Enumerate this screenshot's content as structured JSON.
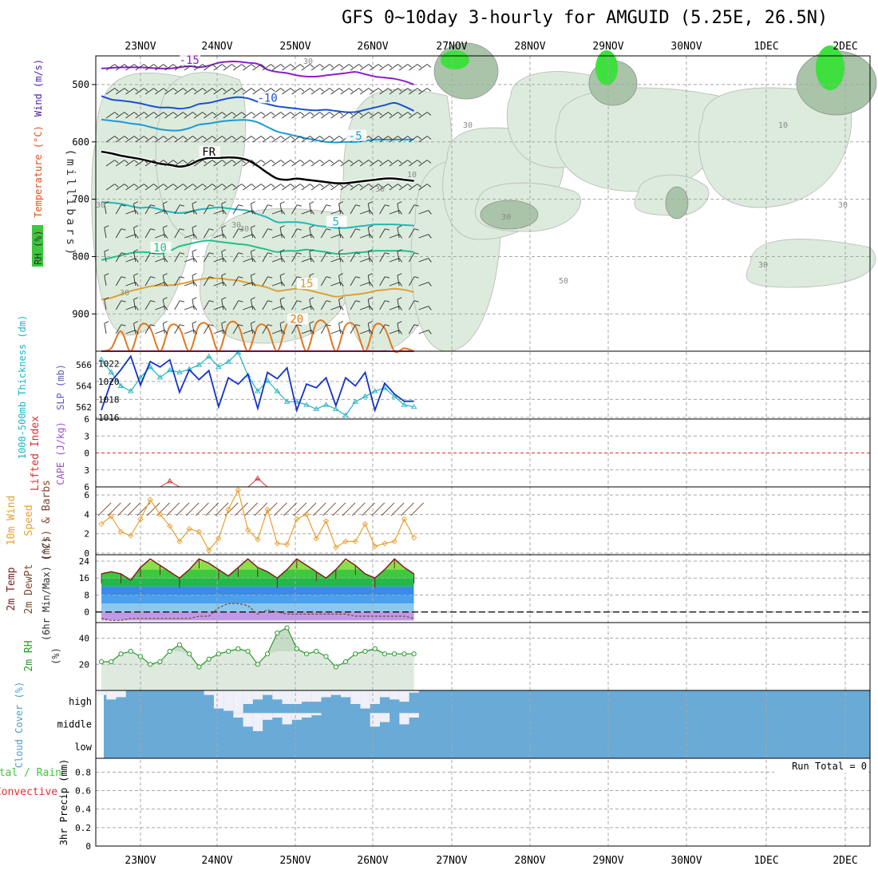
{
  "title": "GFS 0~10day 3-hourly for AMGUID (5.25E, 26.5N)",
  "colors": {
    "axis": "#000000",
    "grid": "#a8a8a8",
    "rh_light": "#dcebdc",
    "rh_mid": "#9fd49f",
    "rh_dark": "#3ec63e",
    "temp_m15": "#8a1fc8",
    "temp_m10": "#1a4fd6",
    "temp_m5": "#1a9ad6",
    "temp_fr": "#000000",
    "temp_5": "#20b8b8",
    "temp_10": "#20c08a",
    "temp_15": "#e0a030",
    "temp_20": "#e07820",
    "temp_25": "#d81c8c",
    "slp": "#1433c8",
    "thickness": "#20b4c4",
    "cape": "#d83030",
    "wind10": "#e8a030",
    "temp2m": "#7a2020",
    "dew2m": "#7a4a30",
    "rh2m_line": "#2a9a2a",
    "rh2m_fill": "#c6dcc6",
    "cloud": "#6aaad6",
    "cloud_gap": "#f0f0f8",
    "precip_total": "#3cc83c",
    "precip_conv": "#e03030"
  },
  "chart_data": [
    {
      "type": "contour",
      "panel": "upper-air",
      "x": [
        "23NOV",
        "24NOV",
        "25NOV",
        "26NOV",
        "27NOV",
        "28NOV",
        "29NOV",
        "30NOV",
        "1DEC",
        "2DEC"
      ],
      "ylabel": "(millibars)",
      "yticks": [
        "500",
        "600",
        "700",
        "800",
        "900"
      ],
      "ylim": [
        1000,
        450
      ],
      "legend": [
        "RH (%)",
        "Temperature (°C)",
        "Wind (m/s)"
      ],
      "rh_labels": [
        "30",
        "30",
        "30",
        "30",
        "10",
        "10",
        "30",
        "50",
        "30",
        "30",
        "30",
        "30",
        "30"
      ],
      "isotherms": [
        {
          "name": "-15",
          "label": "-15",
          "levels": [
            472,
            471,
            470,
            470,
            470,
            471,
            472,
            472,
            470,
            468,
            470,
            467,
            462,
            460,
            460,
            462,
            464,
            474,
            478,
            480,
            484,
            486,
            486,
            484,
            482,
            480,
            478,
            482,
            486,
            488,
            490,
            494,
            500
          ]
        },
        {
          "name": "-10",
          "label": "-10",
          "levels": [
            520,
            526,
            528,
            530,
            533,
            537,
            540,
            540,
            542,
            540,
            534,
            532,
            528,
            524,
            522,
            524,
            530,
            534,
            538,
            540,
            542,
            544,
            545,
            544,
            546,
            548,
            548,
            544,
            540,
            536,
            532,
            538,
            546
          ]
        },
        {
          "name": "-5",
          "label": "-5",
          "levels": [
            561,
            563,
            565,
            568,
            570,
            574,
            578,
            580,
            580,
            576,
            570,
            568,
            565,
            563,
            562,
            562,
            566,
            574,
            582,
            586,
            590,
            594,
            597,
            600,
            601,
            600,
            600,
            598,
            596,
            596,
            596,
            596,
            596
          ]
        },
        {
          "name": "FR",
          "label": "FR",
          "levels": [
            617,
            620,
            624,
            627,
            630,
            634,
            638,
            640,
            643,
            640,
            632,
            628,
            628,
            627,
            628,
            632,
            642,
            654,
            664,
            666,
            664,
            666,
            668,
            670,
            672,
            672,
            670,
            668,
            666,
            664,
            664,
            666,
            668
          ]
        },
        {
          "name": "5",
          "label": "5",
          "levels": [
            705,
            706,
            708,
            712,
            715,
            714,
            718,
            722,
            724,
            722,
            718,
            716,
            714,
            716,
            718,
            720,
            726,
            732,
            740,
            740,
            740,
            742,
            746,
            748,
            750,
            750,
            748,
            746,
            744,
            744,
            744,
            745,
            746
          ]
        },
        {
          "name": "10",
          "label": "10",
          "levels": [
            806,
            802,
            798,
            794,
            792,
            793,
            795,
            790,
            782,
            778,
            774,
            772,
            774,
            776,
            778,
            780,
            784,
            788,
            792,
            790,
            790,
            788,
            790,
            792,
            795,
            795,
            793,
            792,
            790,
            790,
            790,
            790,
            792
          ]
        },
        {
          "name": "15",
          "label": "15",
          "levels": [
            875,
            872,
            866,
            860,
            856,
            852,
            850,
            850,
            848,
            844,
            840,
            838,
            838,
            840,
            842,
            846,
            850,
            854,
            860,
            858,
            856,
            858,
            862,
            866,
            870,
            868,
            866,
            864,
            860,
            858,
            856,
            858,
            862
          ]
        },
        {
          "name": "20",
          "label": "20",
          "levels": [
            998,
            960,
            930,
            998,
            920,
            925,
            998,
            922,
            925,
            998,
            920,
            922,
            998,
            918,
            920,
            998,
            922,
            925,
            998,
            918,
            920,
            998,
            916,
            918,
            998,
            920,
            922,
            998,
            920,
            925,
            998,
            960,
            998
          ]
        },
        {
          "name": "25",
          "label": "",
          "levels": [
            1000,
            1000,
            990,
            1000,
            980,
            990,
            1000,
            980,
            990,
            1000,
            978,
            990,
            1000,
            980,
            990,
            1000,
            982,
            990,
            1000,
            978,
            990,
            1000,
            985,
            995,
            1000,
            985,
            990,
            1000,
            988,
            995,
            1000,
            1000,
            1000
          ]
        }
      ]
    },
    {
      "type": "line",
      "panel": "slp-thickness",
      "ylabel_left": "1000-500mb Thickness (dm)",
      "ylabel_right": "SLP (mb)",
      "yticks_left": [
        "566",
        "564",
        "562"
      ],
      "yticks_right": [
        "1022",
        "1020",
        "1018",
        "1016"
      ],
      "series": [
        {
          "name": "SLP (mb)",
          "ylim": [
            1016,
            1023
          ],
          "values": [
            1016.8,
            1020,
            1021.3,
            1022.8,
            1019.6,
            1022.2,
            1021.6,
            1022.4,
            1018.8,
            1021.3,
            1020.2,
            1021.2,
            1017.2,
            1020.4,
            1019.7,
            1020.8,
            1017,
            1021,
            1020.3,
            1021.5,
            1016.8,
            1019.7,
            1019.3,
            1020.4,
            1017.3,
            1020.4,
            1019.5,
            1021,
            1016.8,
            1019.8,
            1018.6,
            1017.8,
            1017.8
          ]
        },
        {
          "name": "Thickness (dm)",
          "ylim": [
            561,
            567
          ],
          "values": [
            566.5,
            565.3,
            564,
            563.5,
            564.8,
            565.8,
            564.8,
            565.5,
            565.3,
            565.6,
            566,
            566.8,
            565.8,
            566.3,
            567.2,
            565,
            563.5,
            564.5,
            563.5,
            562.5,
            562.5,
            562.2,
            561.8,
            562.2,
            561.8,
            561.2,
            562.5,
            563,
            563.5,
            563.8,
            563,
            562.2,
            562
          ]
        }
      ]
    },
    {
      "type": "line",
      "panel": "cape-li",
      "ylabel_left": "Lifted Index",
      "ylabel_right": "CAPE (J/kg)",
      "yticks": [
        "6",
        "3",
        "0",
        "-3",
        "-6"
      ],
      "series": [
        {
          "name": "Lifted Index",
          "values": [
            8,
            8,
            8,
            8,
            8,
            8,
            7,
            5,
            8,
            8,
            8,
            8,
            8,
            8,
            8,
            8,
            4.5,
            8,
            8,
            8,
            6,
            7,
            8,
            7,
            8,
            8,
            8,
            8,
            8,
            8,
            8,
            8,
            8
          ]
        }
      ]
    },
    {
      "type": "line",
      "panel": "wind10m",
      "ylabel": "10m Wind Speed & Barbs (m/s)",
      "yticks": [
        "6",
        "4",
        "2",
        "0"
      ],
      "ylim": [
        0,
        6.5
      ],
      "values": [
        3,
        3.8,
        2.2,
        1.8,
        3.5,
        5.5,
        4,
        2.8,
        1.2,
        2.5,
        2.2,
        0.3,
        1.5,
        4.5,
        6.5,
        2.4,
        1.4,
        4.5,
        1,
        0.9,
        3.5,
        4,
        1.5,
        3.3,
        0.6,
        1.2,
        1.2,
        3,
        0.7,
        1,
        1.2,
        3.5,
        1.6
      ]
    },
    {
      "type": "area",
      "panel": "temp2m",
      "ylabel": "2m Temp 2m DewPt (6hr Min/Max) (°C)",
      "yticks": [
        "24",
        "16",
        "8",
        "0"
      ],
      "ylim": [
        -5,
        27
      ],
      "series": [
        {
          "name": "2m Temp",
          "values": [
            18,
            19,
            18,
            15,
            21,
            25,
            22,
            19,
            16,
            20,
            25,
            23,
            20,
            17,
            21,
            25,
            21,
            19,
            16,
            20,
            25,
            22,
            19,
            16,
            20,
            25,
            22,
            18,
            16,
            20,
            25,
            21,
            18
          ]
        },
        {
          "name": "2m DewPt",
          "values": [
            -3,
            -4,
            -4,
            -3,
            -3,
            -3,
            -3,
            -3,
            -3,
            -3,
            -2,
            -2,
            2,
            4,
            4,
            3,
            -1,
            1,
            0,
            -1,
            -1,
            -1,
            -1,
            -1,
            -1,
            -1,
            -2,
            -2,
            -2,
            -2,
            -2,
            -2,
            -3
          ]
        }
      ]
    },
    {
      "type": "area",
      "panel": "rh2m",
      "ylabel": "2m RH (%)",
      "yticks": [
        "40",
        "20"
      ],
      "ylim": [
        0,
        52
      ],
      "values": [
        22,
        22,
        28,
        30,
        26,
        20,
        22,
        30,
        35,
        28,
        18,
        24,
        28,
        30,
        32,
        30,
        20,
        28,
        44,
        48,
        32,
        28,
        30,
        26,
        18,
        22,
        28,
        30,
        32,
        28,
        28,
        28,
        28
      ]
    },
    {
      "type": "heatmap",
      "panel": "cloud",
      "ylabel": "Cloud Cover (%)",
      "yticks": [
        "high",
        "middle",
        "low"
      ],
      "high": [
        0.2,
        0.4,
        0.3,
        0,
        0,
        0,
        0,
        0,
        0,
        0,
        0,
        0.2,
        0.8,
        0.9,
        1,
        0.6,
        0.4,
        0.2,
        0.4,
        0.6,
        0.6,
        0.5,
        0.5,
        0.3,
        0.2,
        0.3,
        0.6,
        0.8,
        0.6,
        0.3,
        0.4,
        0.5,
        0.1
      ],
      "middle": [
        0,
        0,
        0,
        0,
        0,
        0,
        0,
        0,
        0,
        0,
        0,
        0,
        0,
        0,
        0.2,
        0.6,
        0.8,
        0.3,
        0.2,
        0.5,
        0.3,
        0.2,
        0.1,
        0,
        0,
        0,
        0,
        0,
        0.6,
        0.4,
        0,
        0.5,
        0.2
      ],
      "low": [
        0,
        0,
        0,
        0,
        0,
        0,
        0,
        0,
        0,
        0,
        0,
        0,
        0,
        0,
        0,
        0,
        0,
        0,
        0,
        0,
        0,
        0,
        0,
        0,
        0,
        0,
        0,
        0,
        0,
        0,
        0,
        0,
        0
      ]
    },
    {
      "type": "bar",
      "panel": "precip",
      "ylabel": "3hr Precip (mm)",
      "legend": [
        "Total / Rain",
        "Convective"
      ],
      "yticks": [
        "0.8",
        "0.6",
        "0.4",
        "0.2",
        "0"
      ],
      "ylim": [
        0,
        0.95
      ],
      "run_total": "Run Total = 0",
      "values": [
        0,
        0,
        0,
        0,
        0,
        0,
        0,
        0,
        0,
        0,
        0,
        0,
        0,
        0,
        0,
        0,
        0,
        0,
        0,
        0,
        0,
        0,
        0,
        0,
        0,
        0,
        0,
        0,
        0,
        0,
        0,
        0,
        0
      ]
    }
  ]
}
